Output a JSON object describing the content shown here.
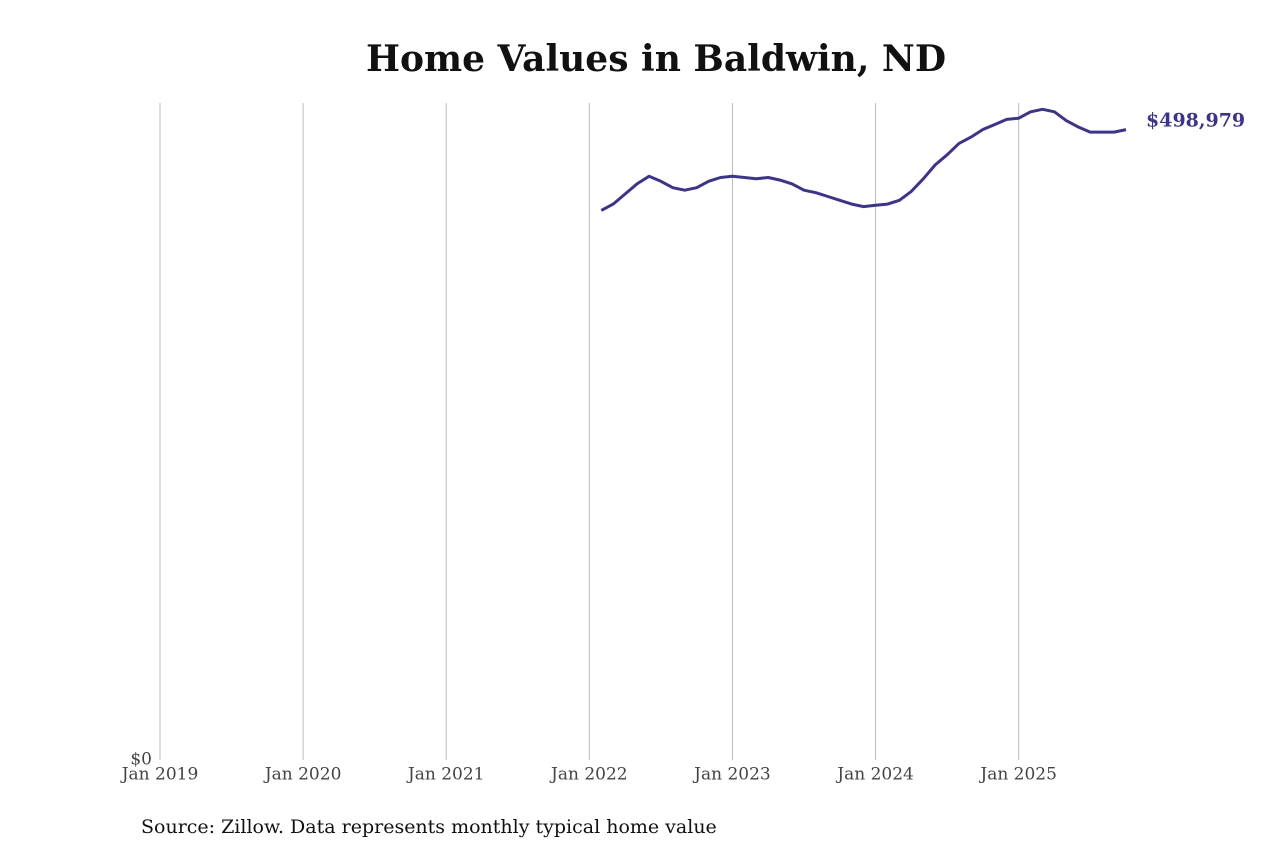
{
  "chart_data": {
    "type": "line",
    "title": "Home Values in Baldwin, ND",
    "source": "Source: Zillow. Data represents monthly typical home value",
    "x": [
      "2022-02",
      "2022-03",
      "2022-04",
      "2022-05",
      "2022-06",
      "2022-07",
      "2022-08",
      "2022-09",
      "2022-10",
      "2022-11",
      "2022-12",
      "2023-01",
      "2023-02",
      "2023-03",
      "2023-04",
      "2023-05",
      "2023-06",
      "2023-07",
      "2023-08",
      "2023-09",
      "2023-10",
      "2023-11",
      "2023-12",
      "2024-01",
      "2024-02",
      "2024-03",
      "2024-04",
      "2024-05",
      "2024-06",
      "2024-07",
      "2024-08",
      "2024-09",
      "2024-10",
      "2024-11",
      "2024-12",
      "2025-01",
      "2025-02",
      "2025-03",
      "2025-04",
      "2025-05",
      "2025-06",
      "2025-07",
      "2025-08",
      "2025-09",
      "2025-10"
    ],
    "series": [
      {
        "name": "Home value",
        "color": "#3b3394",
        "values": [
          435000,
          440000,
          448000,
          456000,
          462000,
          458000,
          453000,
          451000,
          453000,
          458000,
          461000,
          462000,
          461000,
          460000,
          461000,
          459000,
          456000,
          451000,
          449000,
          446000,
          443000,
          440000,
          438000,
          439000,
          440000,
          443000,
          450000,
          460000,
          471000,
          479000,
          488000,
          493000,
          499000,
          503000,
          507000,
          508000,
          513000,
          515000,
          513000,
          506000,
          501000,
          497000,
          497000,
          497000,
          498979
        ],
        "value_labels": [
          null,
          null,
          null,
          null,
          null,
          null,
          null,
          null,
          null,
          null,
          null,
          null,
          null,
          null,
          null,
          null,
          null,
          null,
          null,
          null,
          null,
          null,
          null,
          null,
          null,
          null,
          null,
          null,
          null,
          null,
          null,
          null,
          null,
          null,
          null,
          null,
          null,
          null,
          null,
          null,
          null,
          null,
          null,
          null,
          "$498,979"
        ]
      }
    ],
    "xlim": [
      "2019-01",
      "2025-10"
    ],
    "xticks": [
      {
        "value": "2019-01",
        "label": "Jan 2019"
      },
      {
        "value": "2020-01",
        "label": "Jan 2020"
      },
      {
        "value": "2021-01",
        "label": "Jan 2021"
      },
      {
        "value": "2022-01",
        "label": "Jan 2022"
      },
      {
        "value": "2023-01",
        "label": "Jan 2023"
      },
      {
        "value": "2024-01",
        "label": "Jan 2024"
      },
      {
        "value": "2025-01",
        "label": "Jan 2025"
      }
    ],
    "ylim": [
      0,
      520000
    ],
    "yticks": [
      {
        "value": 0,
        "label": "$0"
      }
    ],
    "grid": true
  }
}
